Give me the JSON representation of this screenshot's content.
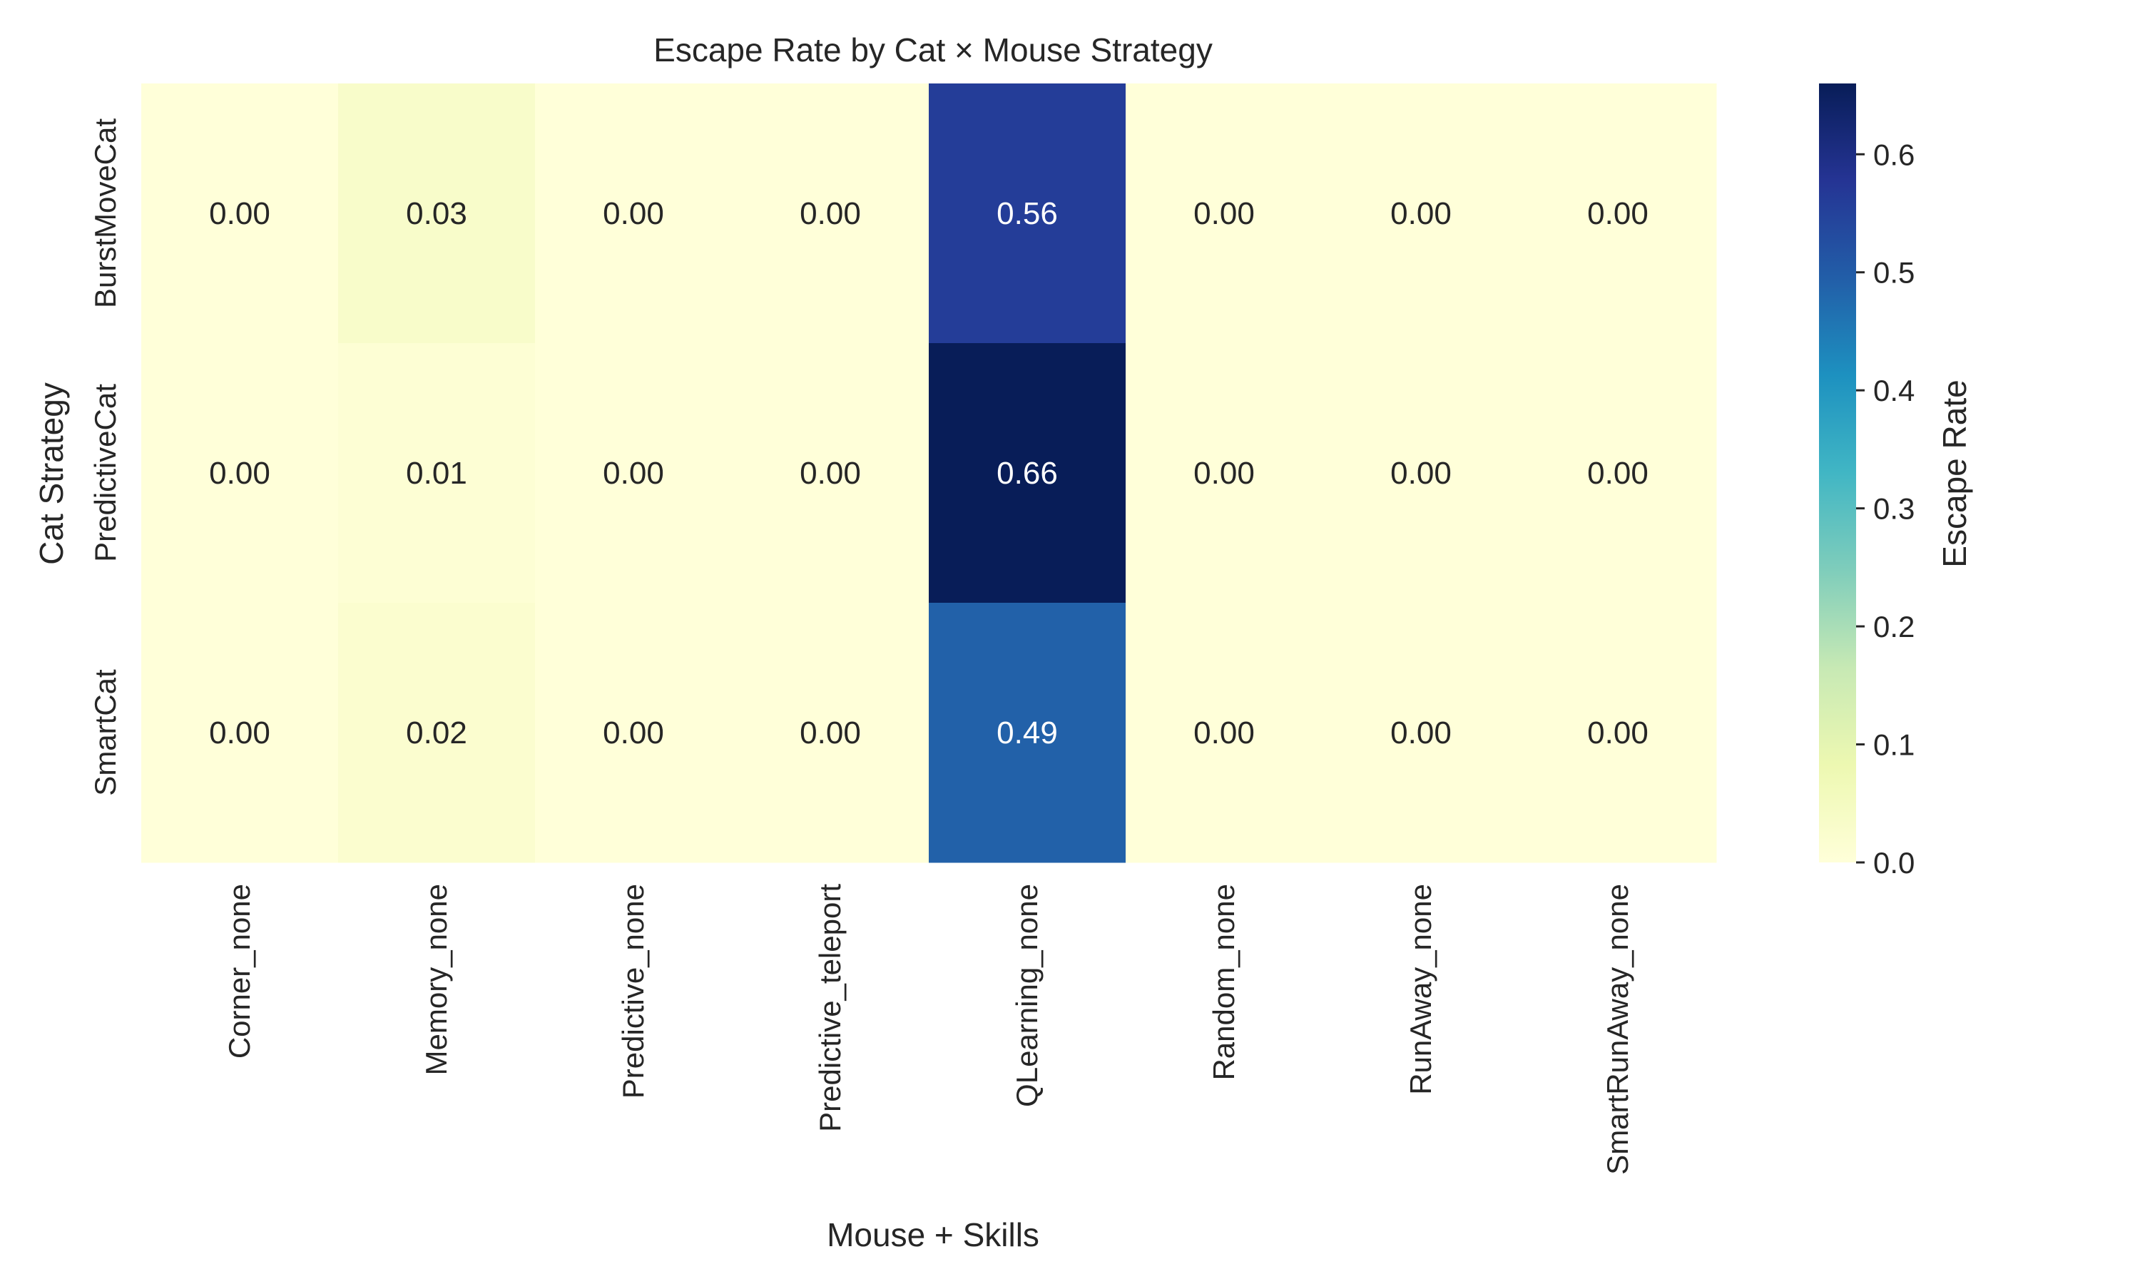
{
  "chart_data": {
    "type": "heatmap",
    "title": "Escape Rate by Cat × Mouse Strategy",
    "xlabel": "Mouse + Skills",
    "ylabel": "Cat Strategy",
    "x_categories": [
      "Corner_none",
      "Memory_none",
      "Predictive_none",
      "Predictive_teleport",
      "QLearning_none",
      "Random_none",
      "RunAway_none",
      "SmartRunAway_none"
    ],
    "y_categories": [
      "BurstMoveCat",
      "PredictiveCat",
      "SmartCat"
    ],
    "values": [
      [
        0.0,
        0.03,
        0.0,
        0.0,
        0.56,
        0.0,
        0.0,
        0.0
      ],
      [
        0.0,
        0.01,
        0.0,
        0.0,
        0.66,
        0.0,
        0.0,
        0.0
      ],
      [
        0.0,
        0.02,
        0.0,
        0.0,
        0.49,
        0.0,
        0.0,
        0.0
      ]
    ],
    "value_format": "0.00",
    "colormap": "YlGnBu",
    "colorbar": {
      "label": "Escape Rate",
      "range": [
        0.0,
        0.66
      ],
      "ticks": [
        "0.0",
        "0.1",
        "0.2",
        "0.3",
        "0.4",
        "0.5",
        "0.6"
      ]
    },
    "grid": false
  }
}
